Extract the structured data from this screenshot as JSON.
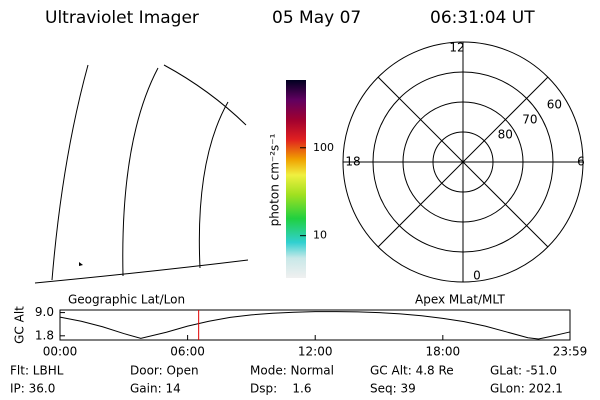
{
  "header": {
    "title": "Ultraviolet Imager",
    "date": "05 May 07",
    "time": "06:31:04 UT"
  },
  "geographic_panel": {
    "label": "Geographic Lat/Lon"
  },
  "colorbar": {
    "label": "photon cm⁻²s⁻¹",
    "scale": "log",
    "lim": [
      3.3,
      590
    ],
    "ticks": [
      10,
      100
    ]
  },
  "polar_panel": {
    "label": "Apex MLat/MLT",
    "mlt_ticks": [
      0,
      6,
      12,
      18
    ],
    "mlat_ticks": [
      80,
      70,
      60
    ],
    "mlat_lim": [
      90,
      50
    ]
  },
  "altitude_panel": {
    "ylabel": "GC Alt",
    "yticks": [
      {
        "value": 9.0,
        "label": "9.0"
      },
      {
        "value": 1.8,
        "label": "1.8"
      }
    ],
    "ylim": [
      0.5,
      9.8
    ],
    "xticks": [
      {
        "value": 0,
        "label": "00:00"
      },
      {
        "value": 6,
        "label": "06:00"
      },
      {
        "value": 12,
        "label": "12:00"
      },
      {
        "value": 18,
        "label": "18:00"
      },
      {
        "value": 23.98,
        "label": "23:59"
      }
    ],
    "xlim": [
      0,
      23.98
    ],
    "x": [
      0,
      1,
      2,
      3,
      3.8,
      5,
      6,
      7,
      8,
      9,
      10,
      11,
      12,
      13,
      14,
      15,
      16,
      17,
      18,
      19,
      20,
      21,
      22,
      22.5,
      23,
      23.98
    ],
    "values": [
      7.6,
      6.3,
      4.6,
      2.5,
      1.0,
      2.9,
      4.8,
      6.3,
      7.5,
      8.3,
      8.8,
      9.1,
      9.3,
      9.3,
      9.2,
      9.0,
      8.6,
      8.0,
      7.2,
      6.2,
      4.8,
      3.0,
      1.2,
      0.8,
      1.5,
      3.0
    ],
    "current_time": 6.52,
    "current_color": "#e00000"
  },
  "info": [
    [
      "Flt: LBHL",
      "IP: 36.0"
    ],
    [
      "Door: Open",
      "Gain: 14"
    ],
    [
      "Mode: Normal",
      "Dsp:    1.6"
    ],
    [
      "GC Alt: 4.8 Re",
      "Seq: 39"
    ],
    [
      "GLat: -51.0",
      "GLon: 202.1"
    ]
  ]
}
